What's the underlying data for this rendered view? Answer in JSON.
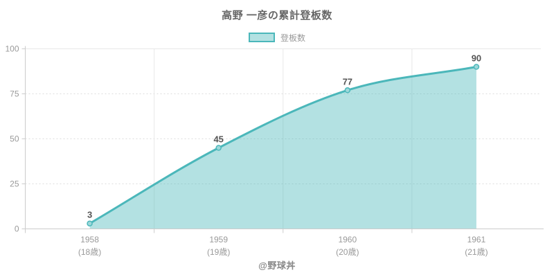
{
  "title": "高野 一彦の累計登板数",
  "legend": {
    "label": "登板数"
  },
  "footer": "@野球丼",
  "colors": {
    "line": "#4bb7ba",
    "area": "rgba(75,183,186,0.42)",
    "marker_fill": "#9ed8da",
    "grid_dashed": "#dcdcdc",
    "grid_solid": "#e8e8e8",
    "axis": "#cccccc",
    "tick_label": "#999999",
    "data_label": "#555555",
    "title_text": "#666666"
  },
  "chart_data": {
    "type": "area",
    "title": "高野 一彦の累計登板数",
    "categories": [
      "1958",
      "1959",
      "1960",
      "1961"
    ],
    "category_sublabels": [
      "(18歳)",
      "(19歳)",
      "(20歳)",
      "(21歳)"
    ],
    "series": [
      {
        "name": "登板数",
        "values": [
          3,
          45,
          77,
          90
        ]
      }
    ],
    "data_labels": [
      "3",
      "45",
      "77",
      "90"
    ],
    "xlabel": "",
    "ylabel": "",
    "ylim": [
      0,
      100
    ],
    "yticks": [
      0,
      25,
      50,
      75,
      100
    ],
    "legend_position": "top",
    "grid": true,
    "curve": "monotone",
    "annotation": "@野球丼"
  }
}
